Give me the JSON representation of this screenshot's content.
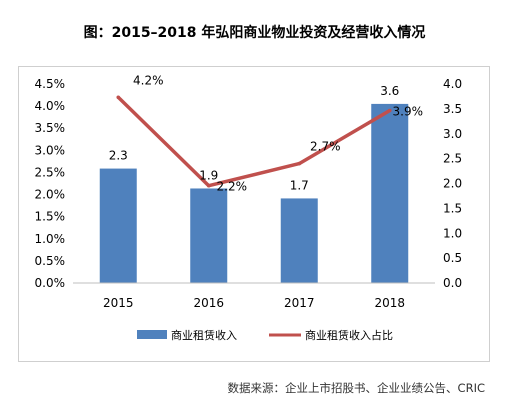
{
  "title": "图：2015–2018 年弘阳商业物业投资及经营收入情况",
  "source": "数据来源：企业上市招股书、企业业绩公告、CRIC",
  "chart_data": {
    "type": "bar",
    "categories": [
      "2015",
      "2016",
      "2017",
      "2018"
    ],
    "series": [
      {
        "name": "商业租赁收入",
        "type": "bar",
        "axis": "right",
        "color": "#4f81bd",
        "values": [
          2.3,
          1.9,
          1.7,
          3.6
        ],
        "labels": [
          "2.3",
          "1.9",
          "1.7",
          "3.6"
        ]
      },
      {
        "name": "商业租赁收入占比",
        "type": "line",
        "axis": "left",
        "color": "#c0504d",
        "values": [
          4.2,
          2.2,
          2.7,
          3.9
        ],
        "labels": [
          "4.2%",
          "2.2%",
          "2.7%",
          "3.9%"
        ]
      }
    ],
    "left_axis": {
      "ylim": [
        0,
        4.5
      ],
      "ticks": [
        "0.0%",
        "0.5%",
        "1.0%",
        "1.5%",
        "2.0%",
        "2.5%",
        "3.0%",
        "3.5%",
        "4.0%",
        "4.5%"
      ]
    },
    "right_axis": {
      "ylim": [
        0,
        4.0
      ],
      "ticks": [
        "0.0",
        "0.5",
        "1.0",
        "1.5",
        "2.0",
        "2.5",
        "3.0",
        "3.5",
        "4.0"
      ]
    },
    "grid": false,
    "legend": "bottom"
  }
}
